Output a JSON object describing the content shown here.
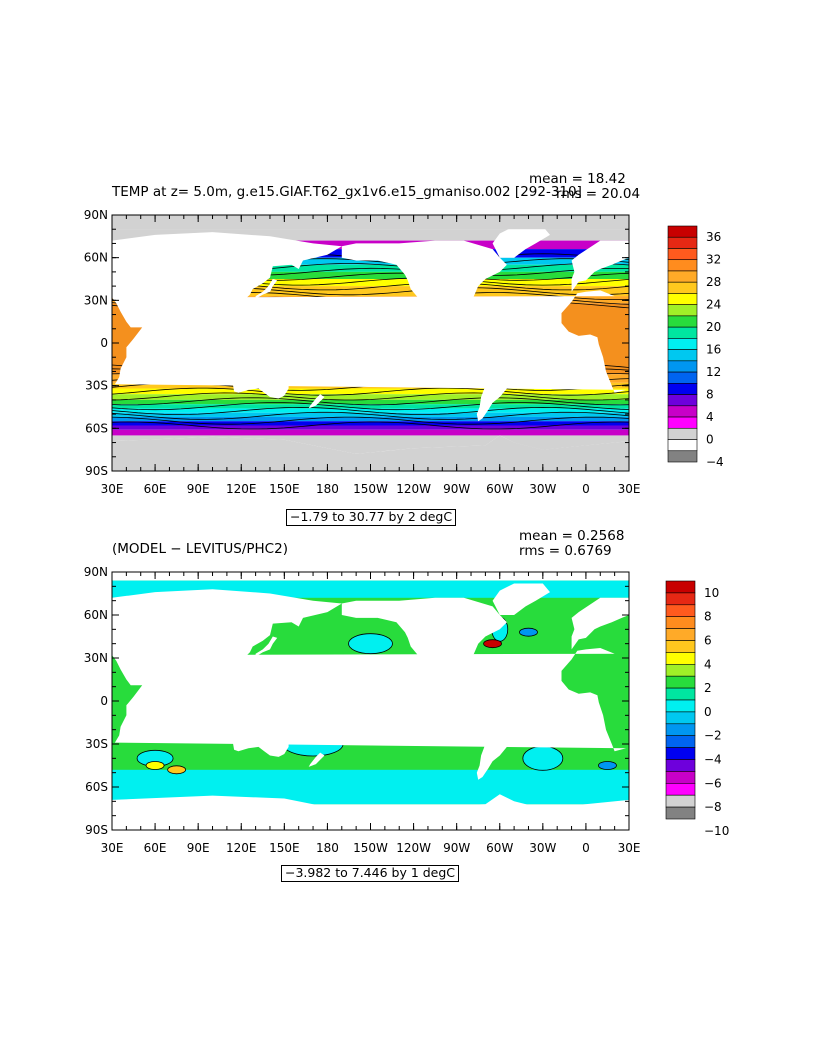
{
  "panels": [
    {
      "id": "temp",
      "title": "TEMP at z=    5.0m, g.e15.GIAF.T62_gx1v6.e15_gmaniso.002  [292-310]",
      "mean_text": "mean = 18.42",
      "rms_text": "rms = 20.04",
      "range_text": "−1.79 to 30.77 by 2 degC",
      "colorbar": {
        "labels": [
          "36",
          "32",
          "28",
          "24",
          "20",
          "16",
          "12",
          "8",
          "4",
          "0",
          "−4"
        ],
        "colors": [
          "#c80000",
          "#e62814",
          "#ff5a1e",
          "#ff8c1e",
          "#ffaa28",
          "#ffc81e",
          "#ffff00",
          "#a0f028",
          "#28dc3c",
          "#00e6a0",
          "#00f0f0",
          "#00c8f0",
          "#0096f0",
          "#0064f0",
          "#0000f0",
          "#6e00dc",
          "#c800c8",
          "#ff00ff",
          "#d2d2d2",
          "#ffffff",
          "#828282"
        ]
      },
      "lat_labels": [
        "90N",
        "60N",
        "30N",
        "0",
        "30S",
        "60S",
        "90S"
      ],
      "lon_labels": [
        "30E",
        "60E",
        "90E",
        "120E",
        "150E",
        "180",
        "150W",
        "120W",
        "90W",
        "60W",
        "30W",
        "0",
        "30E"
      ]
    },
    {
      "id": "diff",
      "title": "(MODEL − LEVITUS/PHC2)",
      "mean_text": "mean = 0.2568",
      "rms_text": "rms = 0.6769",
      "range_text": "−3.982 to 7.446 by 1 degC",
      "colorbar": {
        "labels": [
          "10",
          "8",
          "6",
          "4",
          "2",
          "0",
          "−2",
          "−4",
          "−6",
          "−8",
          "−10"
        ],
        "colors": [
          "#c80000",
          "#e62814",
          "#ff5a1e",
          "#ff8c1e",
          "#ffaa28",
          "#ffc81e",
          "#ffff00",
          "#a0f028",
          "#28dc3c",
          "#00e6a0",
          "#00f0f0",
          "#00c8f0",
          "#0096f0",
          "#0064f0",
          "#0000f0",
          "#6e00dc",
          "#c800c8",
          "#ff00ff",
          "#d2d2d2",
          "#828282"
        ]
      },
      "lat_labels": [
        "90N",
        "60N",
        "30N",
        "0",
        "30S",
        "60S",
        "90S"
      ],
      "lon_labels": [
        "30E",
        "60E",
        "90E",
        "120E",
        "150E",
        "180",
        "150W",
        "120W",
        "90W",
        "60W",
        "30W",
        "0",
        "30E"
      ]
    }
  ],
  "map_colors": {
    "land": "#ffffff",
    "ice": "#cdcdcd",
    "warm": "#f4901e",
    "contour": "#000000"
  }
}
